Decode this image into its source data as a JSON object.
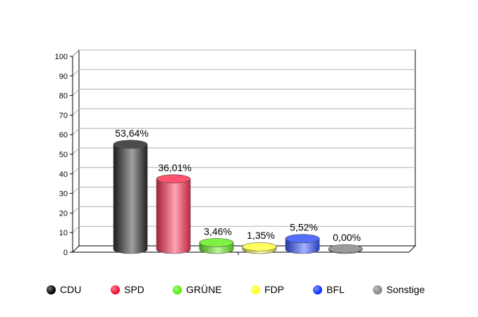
{
  "chart_data": {
    "type": "bar",
    "title": "",
    "xlabel": "",
    "ylabel": "",
    "ylim": [
      0,
      100
    ],
    "yticks": [
      "0",
      "10",
      "20",
      "30",
      "40",
      "50",
      "60",
      "70",
      "80",
      "90",
      "100"
    ],
    "categories": [
      "CDU",
      "SPD",
      "GRÜNE",
      "FDP",
      "BFL",
      "Sonstige"
    ],
    "values": [
      53.64,
      36.01,
      3.46,
      1.35,
      5.52,
      0.0
    ],
    "value_labels": [
      "53,64%",
      "36,01%",
      "3,46%",
      "1,35%",
      "5,52%",
      "0,00%"
    ],
    "colors": [
      "#2b2b2b",
      "#ff3355",
      "#66ee22",
      "#ffff44",
      "#3355ff",
      "#888888"
    ],
    "grid": true,
    "legend": {
      "position": "bottom",
      "items": [
        {
          "label": "CDU",
          "color": "#000000"
        },
        {
          "label": "SPD",
          "color": "#ee1133"
        },
        {
          "label": "GRÜNE",
          "color": "#55ee11"
        },
        {
          "label": "FDP",
          "color": "#ffff22"
        },
        {
          "label": "BFL",
          "color": "#1133ff"
        },
        {
          "label": "Sonstige",
          "color": "#888888"
        }
      ]
    }
  }
}
